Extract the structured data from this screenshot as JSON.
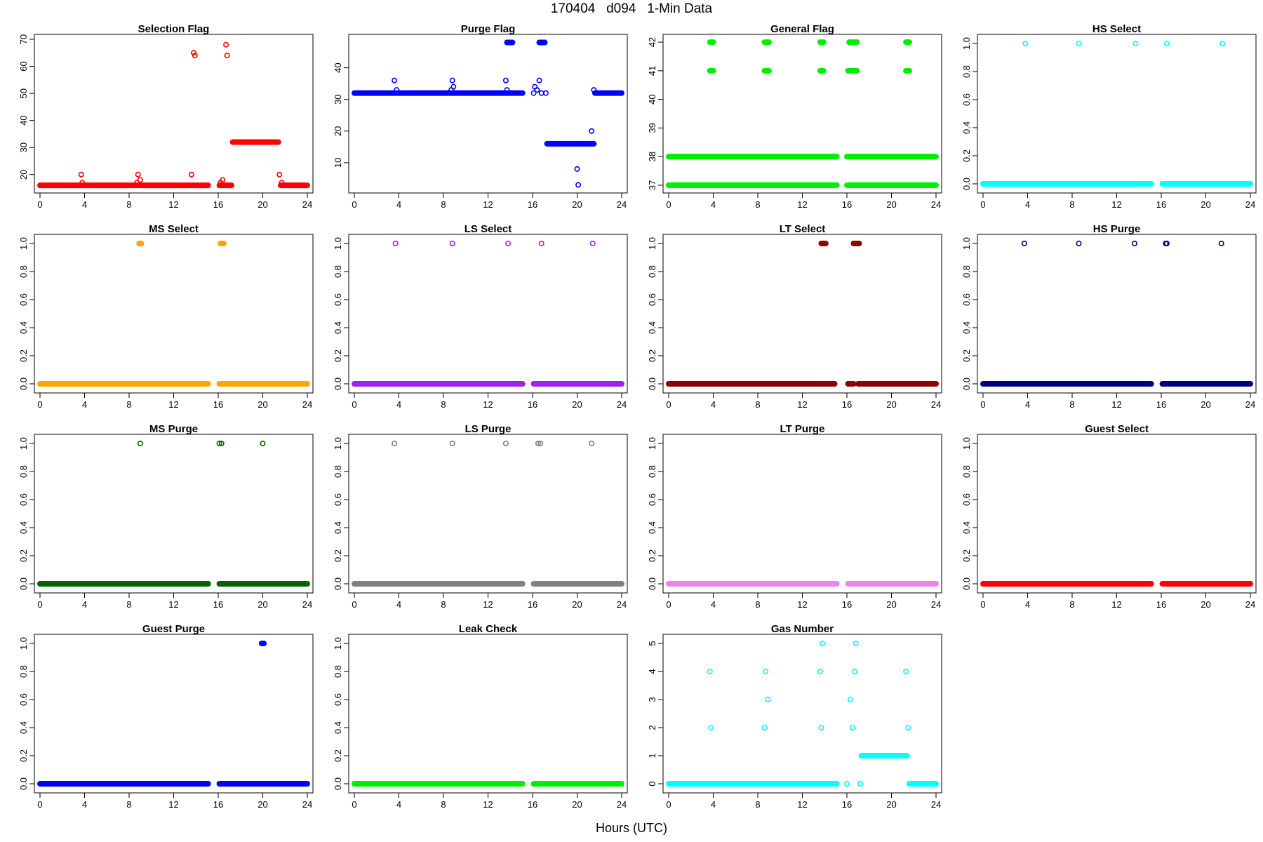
{
  "page": {
    "title": "170404   d094   1-Min Data",
    "xlabel": "Hours (UTC)"
  },
  "chart_data": [
    {
      "type": "scatter",
      "title": "Selection Flag",
      "color": "#ff0000",
      "xlim": [
        0,
        24
      ],
      "ylim": [
        15,
        70
      ],
      "yticks": [
        20,
        30,
        40,
        50,
        60,
        70
      ],
      "xticks": [
        0,
        4,
        8,
        12,
        16,
        20,
        24
      ],
      "runs": [
        {
          "x0": 0,
          "x1": 15.1,
          "y": 16
        },
        {
          "x0": 16.1,
          "x1": 17.2,
          "y": 16
        },
        {
          "x0": 17.3,
          "x1": 21.4,
          "y": 32
        },
        {
          "x0": 21.6,
          "x1": 24,
          "y": 16
        }
      ],
      "points": [
        [
          3.7,
          20
        ],
        [
          3.8,
          17
        ],
        [
          8.7,
          17
        ],
        [
          8.8,
          20
        ],
        [
          9.0,
          18
        ],
        [
          13.6,
          20
        ],
        [
          13.8,
          65
        ],
        [
          13.9,
          64
        ],
        [
          16.2,
          17
        ],
        [
          16.4,
          18
        ],
        [
          16.7,
          68
        ],
        [
          16.8,
          64
        ],
        [
          17.1,
          16
        ],
        [
          21.5,
          20
        ],
        [
          21.7,
          17
        ]
      ]
    },
    {
      "type": "scatter",
      "title": "Purge Flag",
      "color": "#0000ff",
      "xlim": [
        0,
        24
      ],
      "ylim": [
        2,
        49
      ],
      "yticks": [
        10,
        20,
        30,
        40
      ],
      "xticks": [
        0,
        4,
        8,
        12,
        16,
        20,
        24
      ],
      "runs": [
        {
          "x0": 0,
          "x1": 15.1,
          "y": 32
        },
        {
          "x0": 13.7,
          "x1": 14.2,
          "y": 48
        },
        {
          "x0": 16.6,
          "x1": 17.1,
          "y": 48
        },
        {
          "x0": 17.3,
          "x1": 21.5,
          "y": 16
        },
        {
          "x0": 21.6,
          "x1": 24,
          "y": 32
        }
      ],
      "points": [
        [
          3.6,
          36
        ],
        [
          3.8,
          33
        ],
        [
          8.7,
          33
        ],
        [
          8.8,
          36
        ],
        [
          8.9,
          34
        ],
        [
          13.6,
          36
        ],
        [
          13.7,
          33
        ],
        [
          16.1,
          32
        ],
        [
          16.2,
          34
        ],
        [
          16.4,
          33
        ],
        [
          16.6,
          36
        ],
        [
          16.8,
          32
        ],
        [
          17.2,
          32
        ],
        [
          20.0,
          8
        ],
        [
          20.1,
          3
        ],
        [
          21.3,
          20
        ],
        [
          21.5,
          33
        ]
      ]
    },
    {
      "type": "scatter",
      "title": "General Flag",
      "color": "#00ee00",
      "xlim": [
        0,
        24
      ],
      "ylim": [
        36.9,
        42.1
      ],
      "yticks": [
        37,
        38,
        39,
        40,
        41,
        42
      ],
      "xticks": [
        0,
        4,
        8,
        12,
        16,
        20,
        24
      ],
      "runs": [
        {
          "x0": 0,
          "x1": 15.1,
          "y": 37
        },
        {
          "x0": 16.1,
          "x1": 24,
          "y": 37
        },
        {
          "x0": 0,
          "x1": 15.1,
          "y": 38
        },
        {
          "x0": 16.1,
          "x1": 24,
          "y": 38
        },
        {
          "x0": 3.7,
          "x1": 4.0,
          "y": 41
        },
        {
          "x0": 8.6,
          "x1": 9.0,
          "y": 41
        },
        {
          "x0": 13.6,
          "x1": 13.9,
          "y": 41
        },
        {
          "x0": 16.1,
          "x1": 16.9,
          "y": 41
        },
        {
          "x0": 21.3,
          "x1": 21.6,
          "y": 41
        },
        {
          "x0": 3.7,
          "x1": 4.0,
          "y": 42
        },
        {
          "x0": 8.6,
          "x1": 9.0,
          "y": 42
        },
        {
          "x0": 13.6,
          "x1": 13.9,
          "y": 42
        },
        {
          "x0": 16.2,
          "x1": 16.9,
          "y": 42
        },
        {
          "x0": 21.3,
          "x1": 21.6,
          "y": 42
        }
      ],
      "points": [
        [
          16.0,
          38
        ],
        [
          16.0,
          37
        ]
      ]
    },
    {
      "type": "scatter",
      "title": "HS Select",
      "color": "#00ffff",
      "xlim": [
        0,
        24
      ],
      "ylim": [
        -0.03,
        1.03
      ],
      "yticks": [
        0.0,
        0.2,
        0.4,
        0.6,
        0.8,
        1.0
      ],
      "xticks": [
        0,
        4,
        8,
        12,
        16,
        20,
        24
      ],
      "runs": [
        {
          "x0": 0,
          "x1": 15.1,
          "y": 0
        },
        {
          "x0": 16.1,
          "x1": 24,
          "y": 0
        }
      ],
      "points": [
        [
          3.8,
          1
        ],
        [
          8.6,
          1
        ],
        [
          13.7,
          1
        ],
        [
          16.5,
          1
        ],
        [
          21.5,
          1
        ]
      ]
    },
    {
      "type": "scatter",
      "title": "MS Select",
      "color": "#ffa500",
      "xlim": [
        0,
        24
      ],
      "ylim": [
        -0.03,
        1.03
      ],
      "yticks": [
        0.0,
        0.2,
        0.4,
        0.6,
        0.8,
        1.0
      ],
      "xticks": [
        0,
        4,
        8,
        12,
        16,
        20,
        24
      ],
      "runs": [
        {
          "x0": 0,
          "x1": 15.1,
          "y": 0
        },
        {
          "x0": 16.1,
          "x1": 24,
          "y": 0
        },
        {
          "x0": 8.9,
          "x1": 9.1,
          "y": 1
        },
        {
          "x0": 16.2,
          "x1": 16.5,
          "y": 1
        }
      ],
      "points": []
    },
    {
      "type": "scatter",
      "title": "LS Select",
      "color": "#a020f0",
      "xlim": [
        0,
        24
      ],
      "ylim": [
        -0.03,
        1.03
      ],
      "yticks": [
        0.0,
        0.2,
        0.4,
        0.6,
        0.8,
        1.0
      ],
      "xticks": [
        0,
        4,
        8,
        12,
        16,
        20,
        24
      ],
      "runs": [
        {
          "x0": 0,
          "x1": 15.1,
          "y": 0
        },
        {
          "x0": 16.1,
          "x1": 24,
          "y": 0
        }
      ],
      "points": [
        [
          3.7,
          1
        ],
        [
          8.8,
          1
        ],
        [
          13.8,
          1
        ],
        [
          16.8,
          1
        ],
        [
          21.4,
          1
        ]
      ]
    },
    {
      "type": "scatter",
      "title": "LT Select",
      "color": "#8b0000",
      "xlim": [
        0,
        24
      ],
      "ylim": [
        -0.03,
        1.03
      ],
      "yticks": [
        0.0,
        0.2,
        0.4,
        0.6,
        0.8,
        1.0
      ],
      "xticks": [
        0,
        4,
        8,
        12,
        16,
        20,
        24
      ],
      "runs": [
        {
          "x0": 0,
          "x1": 13.9,
          "y": 0
        },
        {
          "x0": 14.0,
          "x1": 14.9,
          "y": 0
        },
        {
          "x0": 16.1,
          "x1": 16.6,
          "y": 0
        },
        {
          "x0": 17.0,
          "x1": 24,
          "y": 0
        },
        {
          "x0": 13.7,
          "x1": 14.1,
          "y": 1
        },
        {
          "x0": 16.6,
          "x1": 17.1,
          "y": 1
        }
      ],
      "points": []
    },
    {
      "type": "scatter",
      "title": "HS Purge",
      "color": "#000080",
      "xlim": [
        0,
        24
      ],
      "ylim": [
        -0.03,
        1.03
      ],
      "yticks": [
        0.0,
        0.2,
        0.4,
        0.6,
        0.8,
        1.0
      ],
      "xticks": [
        0,
        4,
        8,
        12,
        16,
        20,
        24
      ],
      "runs": [
        {
          "x0": 0,
          "x1": 15.1,
          "y": 0
        },
        {
          "x0": 16.1,
          "x1": 24,
          "y": 0
        }
      ],
      "points": [
        [
          3.7,
          1
        ],
        [
          8.6,
          1
        ],
        [
          13.6,
          1
        ],
        [
          16.4,
          1
        ],
        [
          16.5,
          1
        ],
        [
          21.4,
          1
        ]
      ]
    },
    {
      "type": "scatter",
      "title": "MS Purge",
      "color": "#006400",
      "xlim": [
        0,
        24
      ],
      "ylim": [
        -0.03,
        1.03
      ],
      "yticks": [
        0.0,
        0.2,
        0.4,
        0.6,
        0.8,
        1.0
      ],
      "xticks": [
        0,
        4,
        8,
        12,
        16,
        20,
        24
      ],
      "runs": [
        {
          "x0": 0,
          "x1": 15.1,
          "y": 0
        },
        {
          "x0": 16.1,
          "x1": 24,
          "y": 0
        }
      ],
      "points": [
        [
          9.0,
          1
        ],
        [
          16.1,
          1
        ],
        [
          16.3,
          1
        ],
        [
          20.0,
          1
        ]
      ]
    },
    {
      "type": "scatter",
      "title": "LS Purge",
      "color": "#808080",
      "xlim": [
        0,
        24
      ],
      "ylim": [
        -0.03,
        1.03
      ],
      "yticks": [
        0.0,
        0.2,
        0.4,
        0.6,
        0.8,
        1.0
      ],
      "xticks": [
        0,
        4,
        8,
        12,
        16,
        20,
        24
      ],
      "runs": [
        {
          "x0": 0,
          "x1": 15.1,
          "y": 0
        },
        {
          "x0": 16.1,
          "x1": 24,
          "y": 0
        }
      ],
      "points": [
        [
          3.6,
          1
        ],
        [
          8.8,
          1
        ],
        [
          13.6,
          1
        ],
        [
          16.5,
          1
        ],
        [
          16.7,
          1
        ],
        [
          21.3,
          1
        ]
      ]
    },
    {
      "type": "scatter",
      "title": "LT Purge",
      "color": "#ee82ee",
      "xlim": [
        0,
        24
      ],
      "ylim": [
        -0.03,
        1.03
      ],
      "yticks": [
        0.0,
        0.2,
        0.4,
        0.6,
        0.8,
        1.0
      ],
      "xticks": [
        0,
        4,
        8,
        12,
        16,
        20,
        24
      ],
      "runs": [
        {
          "x0": 0,
          "x1": 15.1,
          "y": 0
        },
        {
          "x0": 16.1,
          "x1": 24,
          "y": 0
        }
      ],
      "points": []
    },
    {
      "type": "scatter",
      "title": "Guest Select",
      "color": "#ff0000",
      "xlim": [
        0,
        24
      ],
      "ylim": [
        -0.03,
        1.03
      ],
      "yticks": [
        0.0,
        0.2,
        0.4,
        0.6,
        0.8,
        1.0
      ],
      "xticks": [
        0,
        4,
        8,
        12,
        16,
        20,
        24
      ],
      "runs": [
        {
          "x0": 0,
          "x1": 15.1,
          "y": 0
        },
        {
          "x0": 16.1,
          "x1": 24,
          "y": 0
        }
      ],
      "points": []
    },
    {
      "type": "scatter",
      "title": "Guest Purge",
      "color": "#0000ff",
      "xlim": [
        0,
        24
      ],
      "ylim": [
        -0.03,
        1.03
      ],
      "yticks": [
        0.0,
        0.2,
        0.4,
        0.6,
        0.8,
        1.0
      ],
      "xticks": [
        0,
        4,
        8,
        12,
        16,
        20,
        24
      ],
      "runs": [
        {
          "x0": 0,
          "x1": 15.1,
          "y": 0
        },
        {
          "x0": 16.1,
          "x1": 24,
          "y": 0
        },
        {
          "x0": 19.9,
          "x1": 20.1,
          "y": 1
        }
      ],
      "points": []
    },
    {
      "type": "scatter",
      "title": "Leak Check",
      "color": "#00ee00",
      "xlim": [
        0,
        24
      ],
      "ylim": [
        -0.03,
        1.03
      ],
      "yticks": [
        0.0,
        0.2,
        0.4,
        0.6,
        0.8,
        1.0
      ],
      "xticks": [
        0,
        4,
        8,
        12,
        16,
        20,
        24
      ],
      "runs": [
        {
          "x0": 0,
          "x1": 15.1,
          "y": 0
        },
        {
          "x0": 16.1,
          "x1": 24,
          "y": 0
        }
      ],
      "points": []
    },
    {
      "type": "scatter",
      "title": "Gas Number",
      "color": "#00ffff",
      "xlim": [
        0,
        24
      ],
      "ylim": [
        -0.15,
        5.15
      ],
      "yticks": [
        0,
        1,
        2,
        3,
        4,
        5
      ],
      "xticks": [
        0,
        4,
        8,
        12,
        16,
        20,
        24
      ],
      "runs": [
        {
          "x0": 0,
          "x1": 15.1,
          "y": 0
        },
        {
          "x0": 21.6,
          "x1": 24,
          "y": 0
        },
        {
          "x0": 17.3,
          "x1": 21.4,
          "y": 1
        }
      ],
      "points": [
        [
          3.7,
          4
        ],
        [
          3.8,
          2
        ],
        [
          8.6,
          2
        ],
        [
          8.7,
          4
        ],
        [
          8.9,
          3
        ],
        [
          13.6,
          4
        ],
        [
          13.7,
          2
        ],
        [
          13.8,
          5
        ],
        [
          16.0,
          0
        ],
        [
          16.3,
          3
        ],
        [
          16.5,
          2
        ],
        [
          16.7,
          4
        ],
        [
          16.8,
          5
        ],
        [
          17.2,
          0
        ],
        [
          21.3,
          4
        ],
        [
          21.5,
          2
        ]
      ]
    }
  ]
}
